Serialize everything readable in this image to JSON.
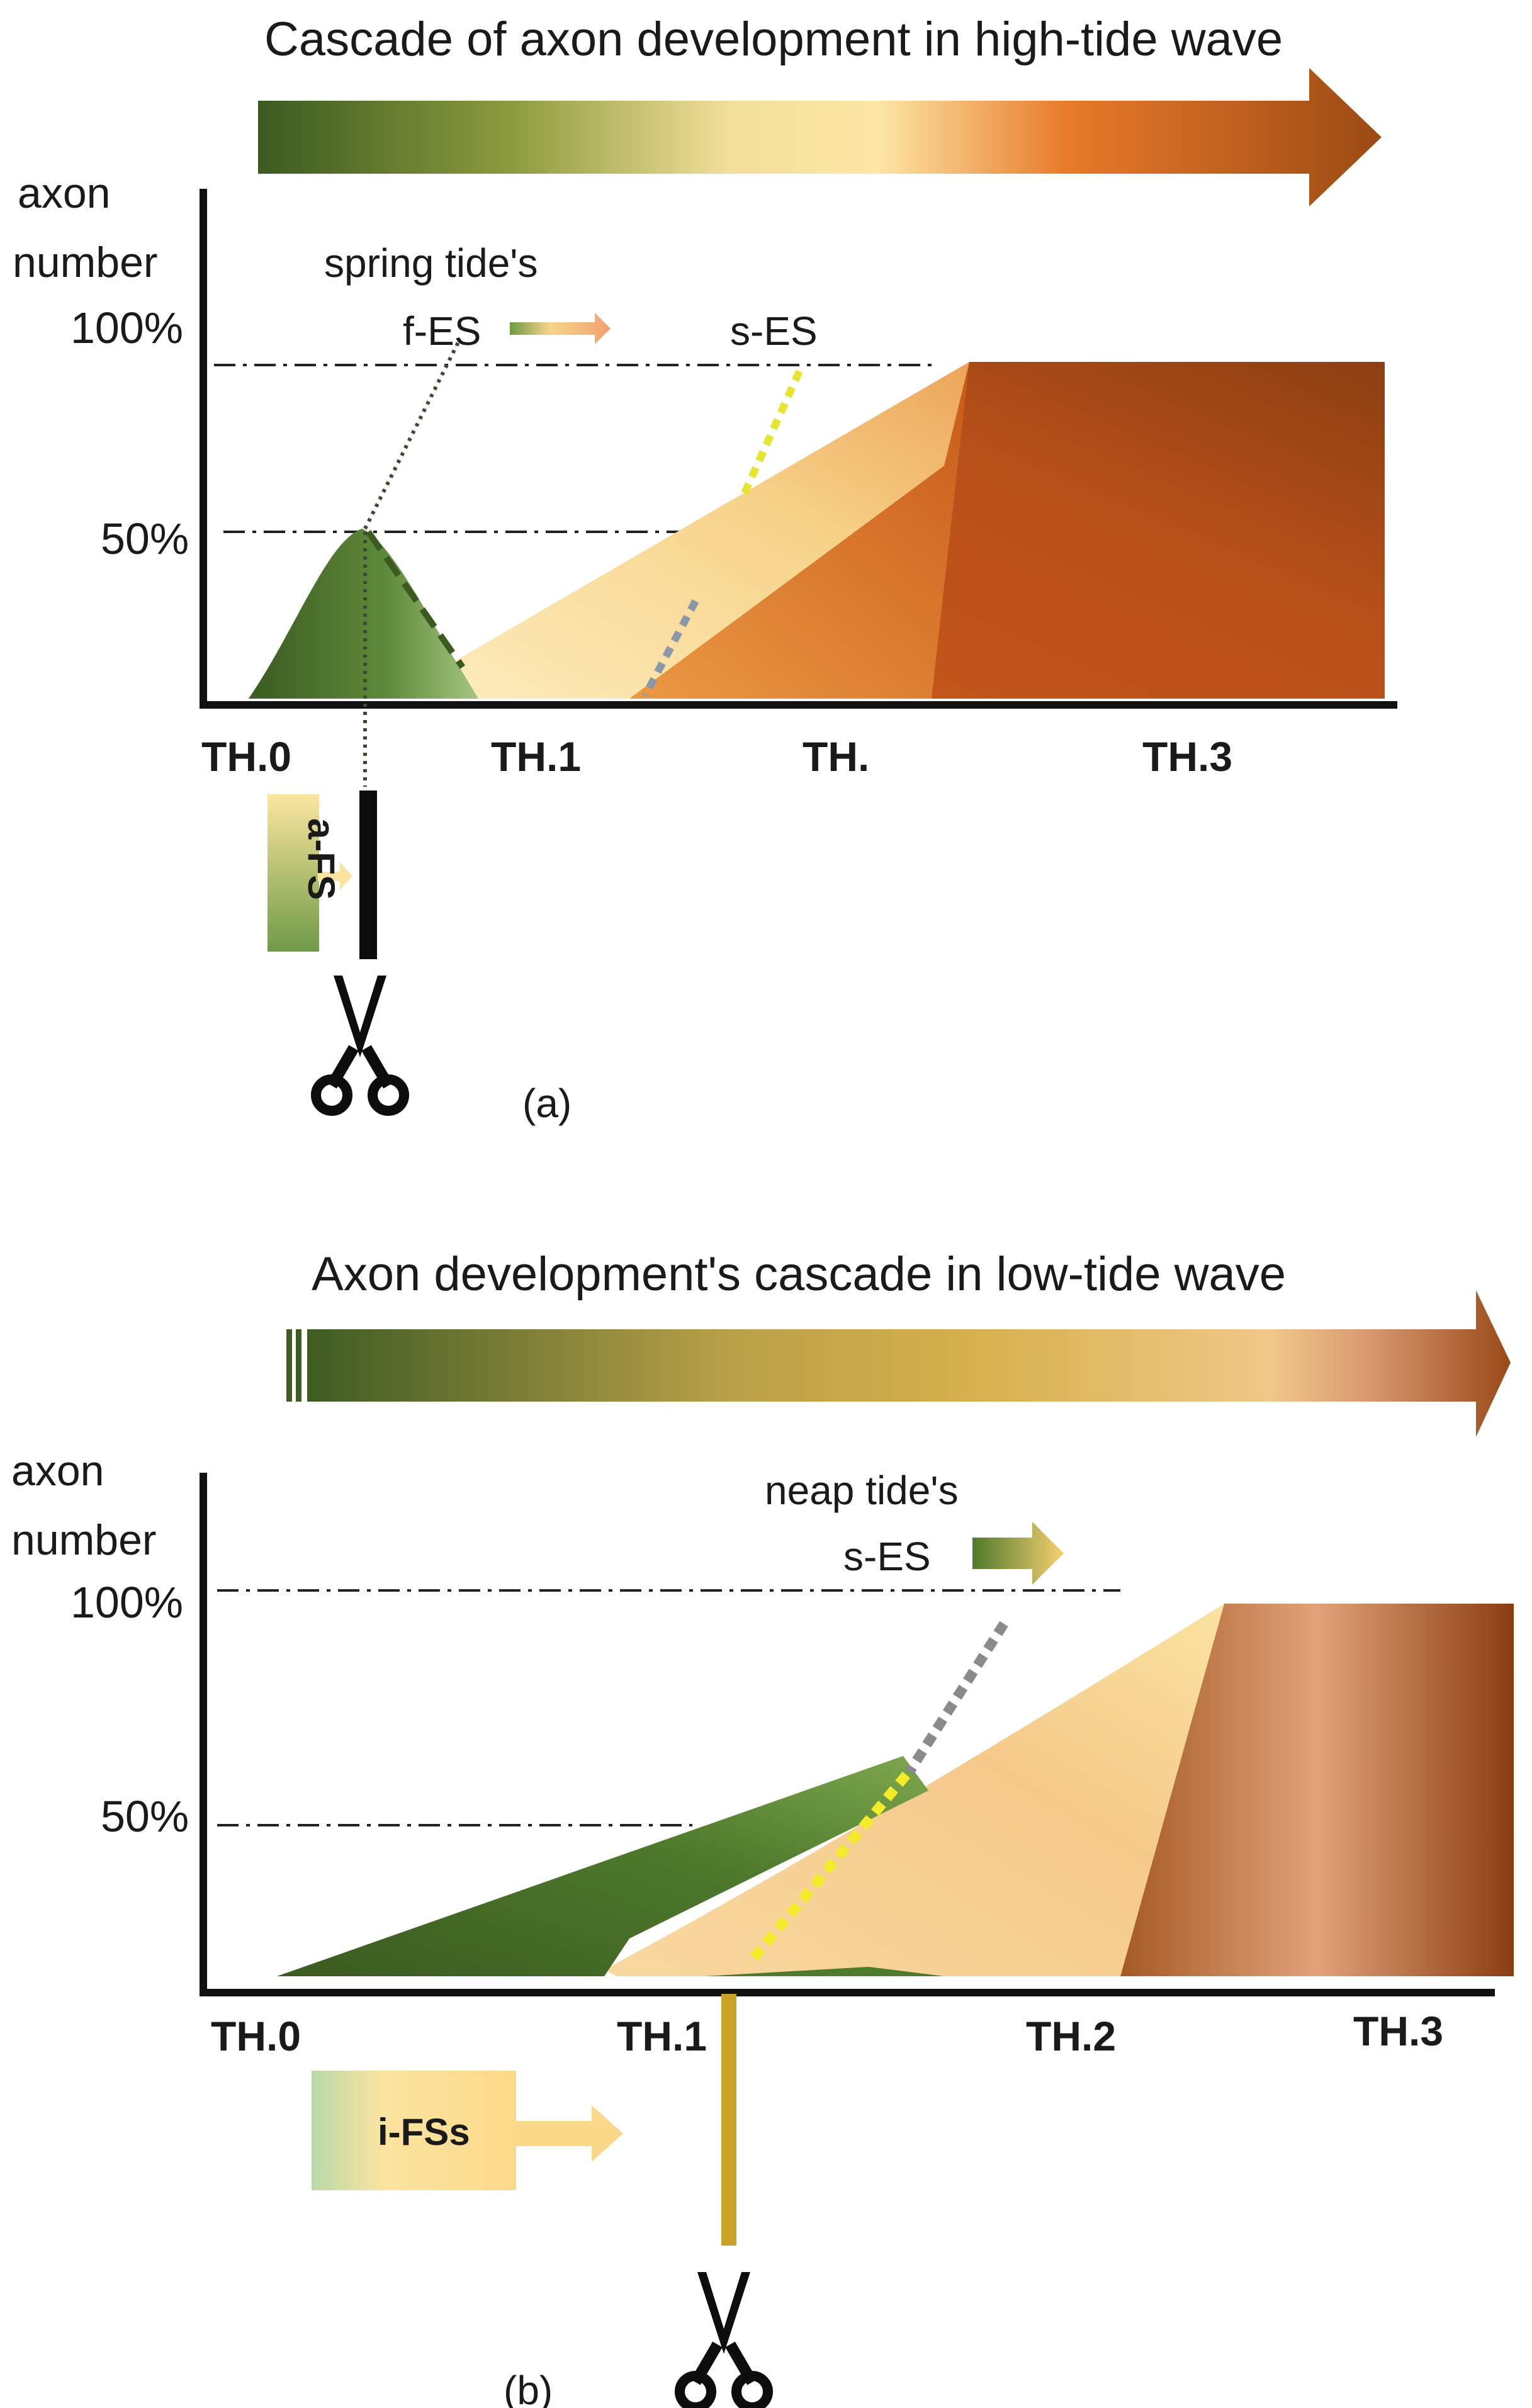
{
  "panel_a": {
    "title": "Cascade of axon development  in high-tide wave",
    "y_label_line1": "axon",
    "y_label_line2": "number",
    "y_tick_100": "100%",
    "y_tick_50": "50%",
    "tide_label": "spring tide's",
    "f_es": "f-ES",
    "s_es": "s-ES",
    "x_ticks": [
      "TH.0",
      "TH.1",
      "TH.",
      "TH.3"
    ],
    "side_badge": "a-FS",
    "caption": "(a)"
  },
  "panel_b": {
    "title": "Axon development's  cascade in low-tide wave",
    "y_label_line1": "axon",
    "y_label_line2": "number",
    "y_tick_100": "100%",
    "y_tick_50": "50%",
    "tide_label": "neap tide's",
    "s_es": "s-ES",
    "x_ticks": [
      "TH.0",
      "TH.1",
      "TH.2",
      "TH.3"
    ],
    "side_badge": "i-FSs",
    "caption": "(b)"
  },
  "colors": {
    "green_dark": "#3d5e22",
    "green_mid": "#6f9a46",
    "sand": "#fbe6a8",
    "orange": "#d2691e",
    "brown": "#8b4513",
    "gold": "#c9a227"
  },
  "icons": [
    "scissors-icon",
    "scissors-icon"
  ]
}
